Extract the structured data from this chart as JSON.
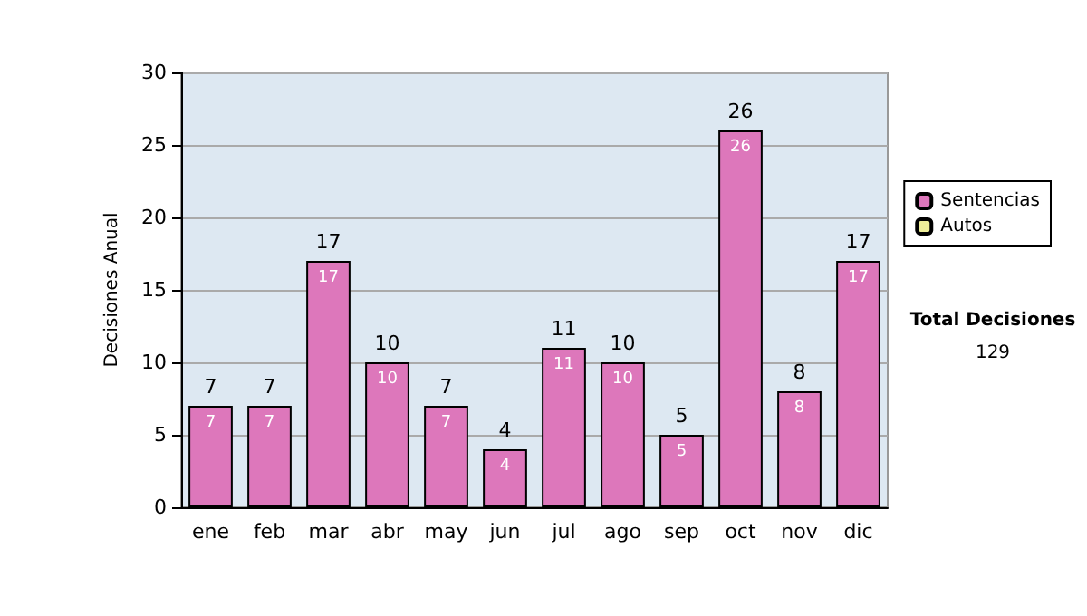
{
  "chart_data": {
    "type": "bar",
    "ylabel": "Decisiones Anual",
    "categories": [
      "ene",
      "feb",
      "mar",
      "abr",
      "may",
      "jun",
      "jul",
      "ago",
      "sep",
      "oct",
      "nov",
      "dic"
    ],
    "series": [
      {
        "name": "Sentencias",
        "color": "#dd77bb",
        "values": [
          7,
          7,
          17,
          10,
          7,
          4,
          11,
          10,
          5,
          26,
          8,
          17
        ],
        "value_labels": [
          "7",
          "7",
          "17",
          "10",
          "7",
          "4",
          "11",
          "10",
          "5",
          "26",
          "8",
          "17"
        ]
      },
      {
        "name": "Autos",
        "color": "#eeee99",
        "values": [
          null,
          null,
          null,
          null,
          null,
          null,
          null,
          null,
          null,
          null,
          null,
          null
        ]
      }
    ],
    "stacked": true,
    "totals": [
      "7",
      "7",
      "17",
      "10",
      "7",
      "4",
      "11",
      "10",
      "5",
      "26",
      "8",
      "17"
    ],
    "ylim": [
      0,
      30
    ],
    "yticks": [
      0,
      5,
      10,
      15,
      20,
      25,
      30
    ],
    "grid": "y",
    "legend": "right",
    "annotations": [
      "Total Decisiones",
      "129"
    ]
  }
}
